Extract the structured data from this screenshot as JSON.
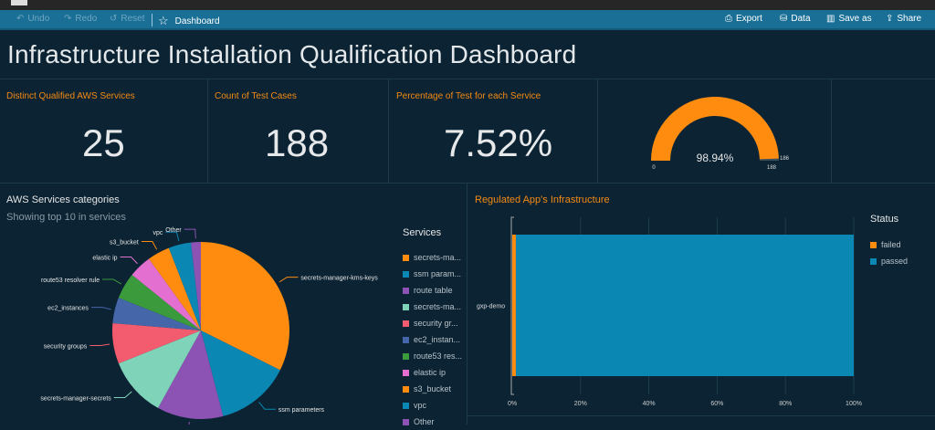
{
  "toolbar": {
    "undo": "Undo",
    "redo": "Redo",
    "reset": "Reset",
    "dashboard": "Dashboard",
    "export": "Export",
    "data": "Data",
    "save_as": "Save as",
    "share": "Share"
  },
  "title": "Infrastructure Installation Qualification Dashboard",
  "kpis": [
    {
      "label": "Distinct Qualified AWS Services",
      "value": "25"
    },
    {
      "label": "Count of Test Cases",
      "value": "188"
    },
    {
      "label": "Percentage of Test for each Service",
      "value": "7.52%"
    }
  ],
  "gauge": {
    "value": 186,
    "max": 188,
    "min_label": "0",
    "max_label": "188",
    "value_label": "186",
    "percent_label": "98.94%",
    "color": "#ff8c0f"
  },
  "chart_data": [
    {
      "type": "pie",
      "title": "AWS Services categories",
      "subtitle": "Showing top 10 in services",
      "legend_title": "Services",
      "legend_position": "right",
      "categories": [
        "secrets-manager-kms-keys",
        "ssm parameters",
        "route table",
        "secrets-manager-secrets",
        "security groups",
        "ec2_instances",
        "route53 resolver rule",
        "elastic ip",
        "s3_bucket",
        "vpc",
        "Other"
      ],
      "legend_labels": [
        "secrets-ma...",
        "ssm param...",
        "route table",
        "secrets-ma...",
        "security gr...",
        "ec2_instan...",
        "route53 res...",
        "elastic ip",
        "s3_bucket",
        "vpc",
        "Other"
      ],
      "values": [
        32.4,
        13.6,
        12.1,
        10.9,
        7.4,
        4.7,
        4.8,
        4.2,
        4.1,
        4.1,
        1.8
      ],
      "colors": [
        "#ff8c0f",
        "#0a87b2",
        "#8c53b4",
        "#7fd3b9",
        "#f25c6e",
        "#4566a8",
        "#3a9a3c",
        "#e36fd0",
        "#ff8c0f",
        "#0a87b2",
        "#8c53b4"
      ]
    },
    {
      "type": "bar",
      "orientation": "horizontal",
      "stacked": "100%",
      "title": "Regulated App's Infrastructure",
      "legend_title": "Status",
      "legend_position": "right",
      "categories": [
        "gxp-demo"
      ],
      "series": [
        {
          "name": "failed",
          "values": [
            1.06
          ],
          "color": "#ff8c0f"
        },
        {
          "name": "passed",
          "values": [
            98.94
          ],
          "color": "#0a87b2"
        }
      ],
      "xticks": [
        "0%",
        "20%",
        "40%",
        "60%",
        "80%",
        "100%"
      ],
      "xlim": [
        0,
        100
      ],
      "grid": true
    }
  ]
}
